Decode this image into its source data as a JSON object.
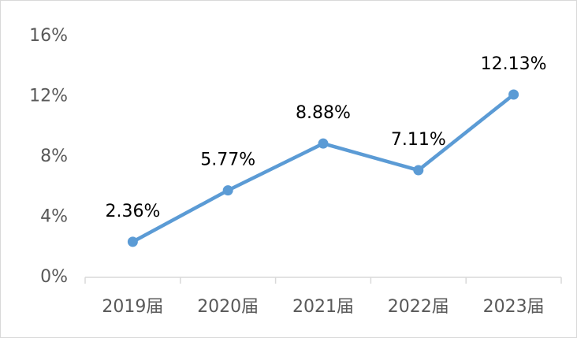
{
  "chart_data": {
    "type": "line",
    "categories": [
      "2019届",
      "2020届",
      "2021届",
      "2022届",
      "2023届"
    ],
    "series": [
      {
        "color": "#5b9bd5",
        "values": [
          2.36,
          5.77,
          8.88,
          7.11,
          12.13
        ],
        "value_labels": [
          "2.36%",
          "5.77%",
          "8.88%",
          "7.11%",
          "12.13%"
        ]
      }
    ],
    "ylim": [
      0,
      16
    ],
    "yticks": [
      {
        "value": 0,
        "label": "0%"
      },
      {
        "value": 4,
        "label": "4%"
      },
      {
        "value": 8,
        "label": "8%"
      },
      {
        "value": 12,
        "label": "12%"
      },
      {
        "value": 16,
        "label": "16%"
      }
    ],
    "grid": false
  }
}
